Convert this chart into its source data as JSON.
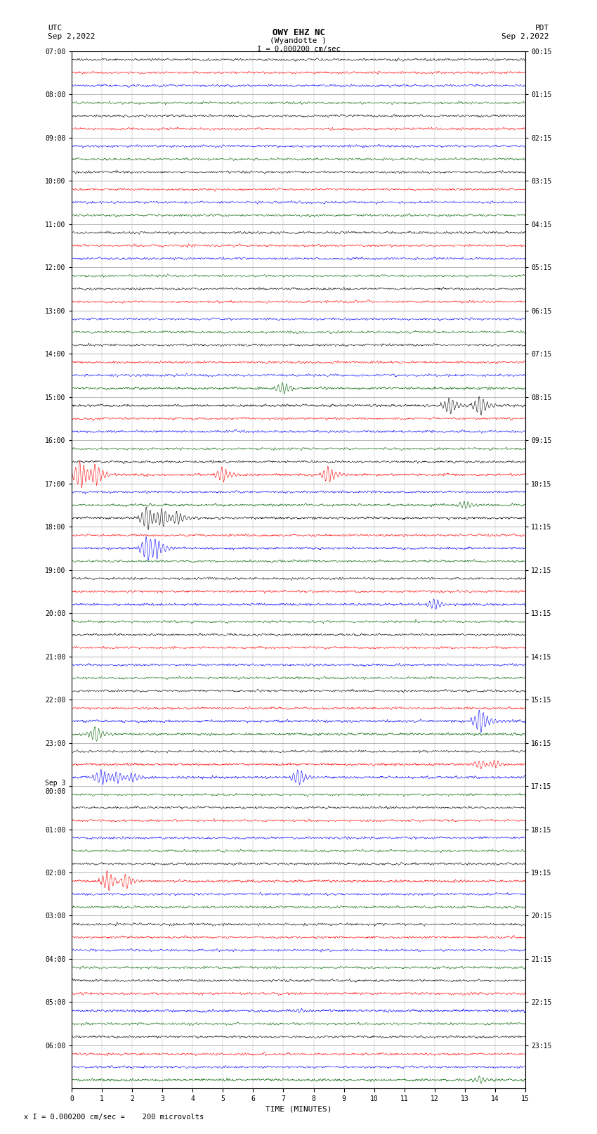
{
  "title_line1": "OWY EHZ NC",
  "title_line2": "(Wyandotte )",
  "scale_label": "I = 0.000200 cm/sec",
  "left_label_top": "UTC",
  "left_label_date": "Sep 2,2022",
  "right_label_top": "PDT",
  "right_label_date": "Sep 2,2022",
  "bottom_label": "TIME (MINUTES)",
  "footer_text": "x I = 0.000200 cm/sec =    200 microvolts",
  "xlabel_ticks": [
    0,
    1,
    2,
    3,
    4,
    5,
    6,
    7,
    8,
    9,
    10,
    11,
    12,
    13,
    14,
    15
  ],
  "left_time_labels": [
    "07:00",
    "08:00",
    "09:00",
    "10:00",
    "11:00",
    "12:00",
    "13:00",
    "14:00",
    "15:00",
    "16:00",
    "17:00",
    "18:00",
    "19:00",
    "20:00",
    "21:00",
    "22:00",
    "23:00",
    "Sep 3\n00:00",
    "01:00",
    "02:00",
    "03:00",
    "04:00",
    "05:00",
    "06:00"
  ],
  "right_time_labels": [
    "00:15",
    "01:15",
    "02:15",
    "03:15",
    "04:15",
    "05:15",
    "06:15",
    "07:15",
    "08:15",
    "09:15",
    "10:15",
    "11:15",
    "12:15",
    "13:15",
    "14:15",
    "15:15",
    "16:15",
    "17:15",
    "18:15",
    "19:15",
    "20:15",
    "21:15",
    "22:15",
    "23:15"
  ],
  "num_rows": 24,
  "minutes_per_row": 15,
  "colors": {
    "black": "#000000",
    "red": "#ff0000",
    "blue": "#0000ff",
    "green": "#008000",
    "dark_green": "#006400"
  },
  "bg_color": "#ffffff",
  "grid_color": "#cccccc",
  "fig_width": 8.5,
  "fig_height": 16.13,
  "dpi": 100
}
